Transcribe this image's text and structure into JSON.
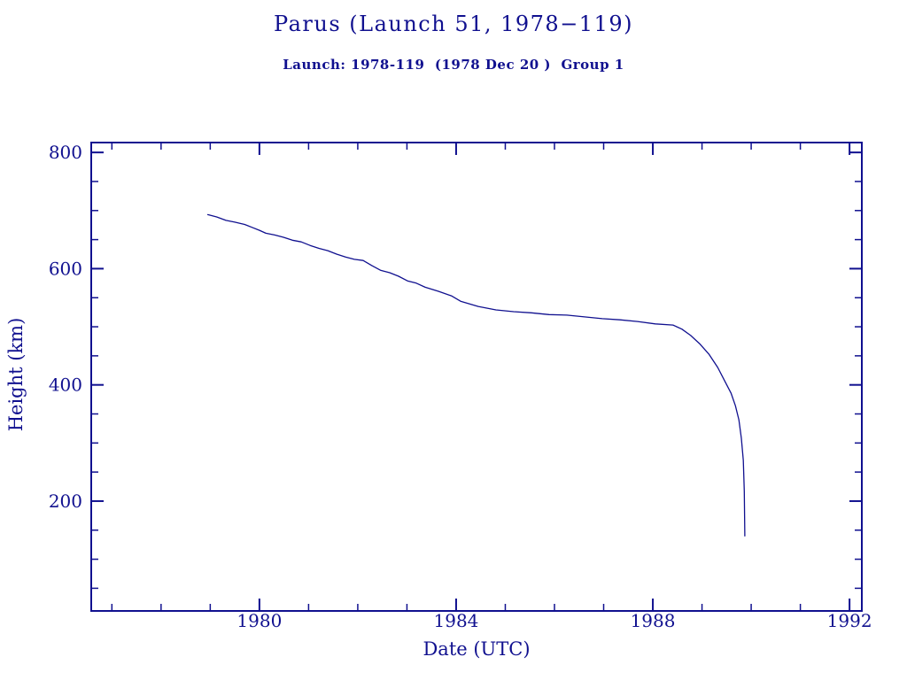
{
  "page": {
    "background": "#ffffff",
    "ink_color": "#10108f"
  },
  "chart_data": {
    "type": "line",
    "title": "Parus (Launch 51, 1978−119)",
    "subtitle": "Launch: 1978-119  (1978 Dec 20 )  Group 1",
    "xlabel": "Date (UTC)",
    "ylabel": "Height (km)",
    "xlim": [
      1976.58,
      1992.25
    ],
    "ylim": [
      11,
      817
    ],
    "grid": false,
    "legend_position": "none",
    "xticks": {
      "major": [
        1980,
        1984,
        1988,
        1992
      ],
      "labels": [
        "1980",
        "1984",
        "1988",
        "1992"
      ],
      "minor_step": 1
    },
    "yticks": {
      "major": [
        200,
        400,
        600,
        800
      ],
      "labels": [
        "200",
        "400",
        "600",
        "800"
      ],
      "minor_step": 50
    },
    "series": [
      {
        "name": "height-km",
        "color": "#10108f",
        "points": [
          [
            1978.95,
            693
          ],
          [
            1979.13,
            689
          ],
          [
            1979.32,
            683
          ],
          [
            1979.5,
            680
          ],
          [
            1979.7,
            676
          ],
          [
            1979.85,
            671
          ],
          [
            1980.0,
            666
          ],
          [
            1980.13,
            661
          ],
          [
            1980.31,
            658
          ],
          [
            1980.49,
            654
          ],
          [
            1980.67,
            649
          ],
          [
            1980.85,
            646
          ],
          [
            1981.03,
            640
          ],
          [
            1981.21,
            635
          ],
          [
            1981.39,
            631
          ],
          [
            1981.57,
            625
          ],
          [
            1981.75,
            620
          ],
          [
            1981.93,
            616
          ],
          [
            1982.11,
            614
          ],
          [
            1982.29,
            605
          ],
          [
            1982.47,
            597
          ],
          [
            1982.65,
            593
          ],
          [
            1982.83,
            587
          ],
          [
            1983.01,
            579
          ],
          [
            1983.19,
            575
          ],
          [
            1983.37,
            568
          ],
          [
            1983.64,
            561
          ],
          [
            1983.91,
            553
          ],
          [
            1984.09,
            544
          ],
          [
            1984.45,
            535
          ],
          [
            1984.81,
            529
          ],
          [
            1985.17,
            526
          ],
          [
            1985.53,
            524
          ],
          [
            1985.89,
            521
          ],
          [
            1986.25,
            520
          ],
          [
            1986.61,
            517
          ],
          [
            1986.97,
            514
          ],
          [
            1987.33,
            512
          ],
          [
            1987.69,
            509
          ],
          [
            1988.05,
            505
          ],
          [
            1988.41,
            503
          ],
          [
            1988.59,
            496
          ],
          [
            1988.77,
            485
          ],
          [
            1988.95,
            471
          ],
          [
            1989.14,
            453
          ],
          [
            1989.32,
            430
          ],
          [
            1989.46,
            407
          ],
          [
            1989.59,
            386
          ],
          [
            1989.68,
            364
          ],
          [
            1989.75,
            340
          ],
          [
            1989.8,
            308
          ],
          [
            1989.84,
            270
          ],
          [
            1989.86,
            217
          ],
          [
            1989.87,
            140
          ]
        ]
      }
    ]
  }
}
